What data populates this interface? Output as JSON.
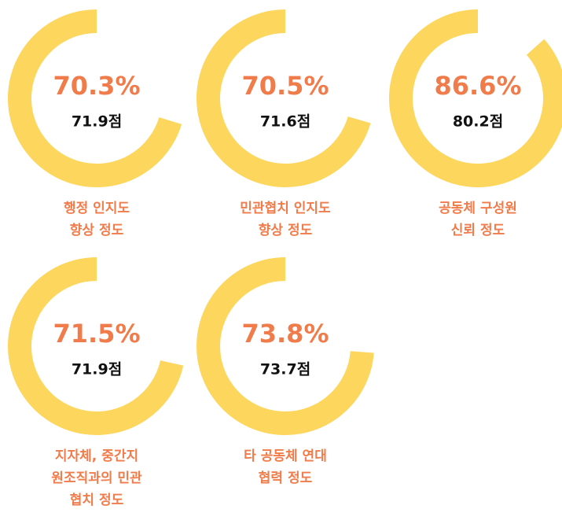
{
  "chart_data": [
    {
      "type": "donut",
      "values": [
        70.3
      ],
      "value_labels": [
        "70.3%"
      ],
      "annotations": [
        "71.9점"
      ],
      "title": [
        "행정 인지도",
        "향상 정도"
      ],
      "color": "#fdd65e",
      "label_color": "#f07c4b"
    },
    {
      "type": "donut",
      "values": [
        70.5
      ],
      "value_labels": [
        "70.5%"
      ],
      "annotations": [
        "71.6점"
      ],
      "title": [
        "민관협치 인지도",
        "향상 정도"
      ],
      "color": "#fdd65e",
      "label_color": "#f07c4b"
    },
    {
      "type": "donut",
      "values": [
        86.6
      ],
      "value_labels": [
        "86.6%"
      ],
      "annotations": [
        "80.2점"
      ],
      "title": [
        "공동체 구성원",
        "신뢰 정도"
      ],
      "color": "#fdd65e",
      "label_color": "#f07c4b"
    },
    {
      "type": "donut",
      "values": [
        71.5
      ],
      "value_labels": [
        "71.5%"
      ],
      "annotations": [
        "71.9점"
      ],
      "title": [
        "지자체, 중간지",
        "원조직과의 민관",
        "협치 정도"
      ],
      "color": "#fdd65e",
      "label_color": "#f07c4b"
    },
    {
      "type": "donut",
      "values": [
        73.8
      ],
      "value_labels": [
        "73.8%"
      ],
      "annotations": [
        "73.7점"
      ],
      "title": [
        "타 공동체 연대",
        "협력 정도"
      ],
      "color": "#fdd65e",
      "label_color": "#f07c4b"
    }
  ]
}
